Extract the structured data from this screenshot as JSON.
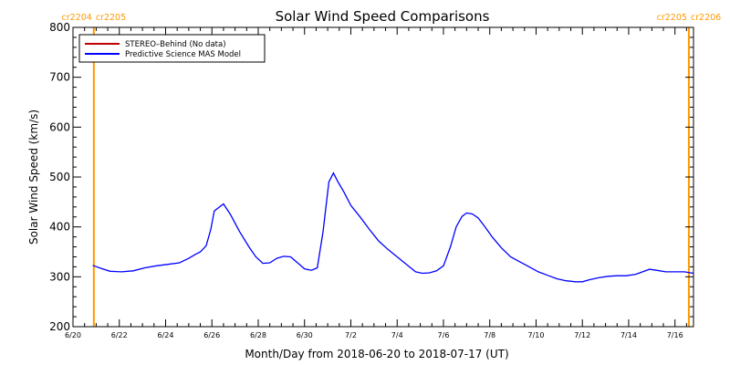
{
  "chart_data": {
    "type": "line",
    "title": "Solar Wind Speed Comparisons",
    "xlabel": "Month/Day from 2018-06-20 to 2018-07-17 (UT)",
    "ylabel": "Solar Wind Speed (km/s)",
    "ylim": [
      200,
      800
    ],
    "y_ticks": [
      200,
      300,
      400,
      500,
      600,
      700,
      800
    ],
    "x_range_days": [
      0,
      26.8
    ],
    "x_ticks": [
      {
        "day": 0,
        "label": "6/20"
      },
      {
        "day": 2,
        "label": "6/22"
      },
      {
        "day": 4,
        "label": "6/24"
      },
      {
        "day": 6,
        "label": "6/26"
      },
      {
        "day": 8,
        "label": "6/28"
      },
      {
        "day": 10,
        "label": "6/30"
      },
      {
        "day": 12,
        "label": "7/2"
      },
      {
        "day": 14,
        "label": "7/4"
      },
      {
        "day": 16,
        "label": "7/6"
      },
      {
        "day": 18,
        "label": "7/8"
      },
      {
        "day": 20,
        "label": "7/10"
      },
      {
        "day": 22,
        "label": "7/12"
      },
      {
        "day": 24,
        "label": "7/14"
      },
      {
        "day": 26,
        "label": "7/16"
      }
    ],
    "carrington_markers": [
      {
        "day": 0.9,
        "left_label": "cr2204",
        "right_label": "cr2205"
      },
      {
        "day": 26.6,
        "left_label": "cr2205",
        "right_label": "cr2206"
      }
    ],
    "marker_color": "#ff9900",
    "legend_position": "top-left",
    "series": [
      {
        "name": "STEREO–Behind (No data)",
        "color": "#c00000",
        "x": [],
        "y": []
      },
      {
        "name": "Predictive Science MAS Model",
        "color": "#0000ff",
        "x": [
          0.85,
          1.2,
          1.6,
          2.1,
          2.6,
          3.1,
          3.6,
          4.1,
          4.6,
          5.0,
          5.25,
          5.5,
          5.75,
          5.95,
          6.1,
          6.5,
          6.8,
          7.2,
          7.6,
          7.9,
          8.2,
          8.5,
          8.8,
          9.1,
          9.4,
          9.7,
          10.0,
          10.3,
          10.55,
          10.8,
          11.05,
          11.25,
          11.45,
          11.7,
          12.0,
          12.4,
          12.8,
          13.2,
          13.6,
          14.0,
          14.4,
          14.8,
          15.1,
          15.4,
          15.7,
          16.0,
          16.3,
          16.55,
          16.8,
          17.0,
          17.25,
          17.5,
          17.8,
          18.1,
          18.5,
          18.9,
          19.3,
          19.7,
          20.1,
          20.5,
          20.9,
          21.3,
          21.7,
          22.0,
          22.3,
          22.7,
          23.1,
          23.5,
          23.9,
          24.3,
          24.6,
          24.9,
          25.2,
          25.6,
          26.0,
          26.4,
          26.8
        ],
        "y": [
          323,
          317,
          311,
          310,
          312,
          318,
          322,
          325,
          328,
          337,
          344,
          350,
          362,
          395,
          432,
          446,
          425,
          390,
          360,
          340,
          327,
          328,
          337,
          341,
          340,
          328,
          316,
          313,
          318,
          390,
          490,
          508,
          490,
          470,
          443,
          420,
          395,
          372,
          355,
          340,
          325,
          310,
          307,
          308,
          312,
          322,
          360,
          400,
          421,
          428,
          426,
          418,
          400,
          380,
          358,
          340,
          330,
          320,
          310,
          303,
          296,
          292,
          290,
          290,
          294,
          298,
          301,
          302,
          302,
          305,
          310,
          315,
          313,
          310,
          310,
          310,
          307
        ]
      }
    ]
  }
}
